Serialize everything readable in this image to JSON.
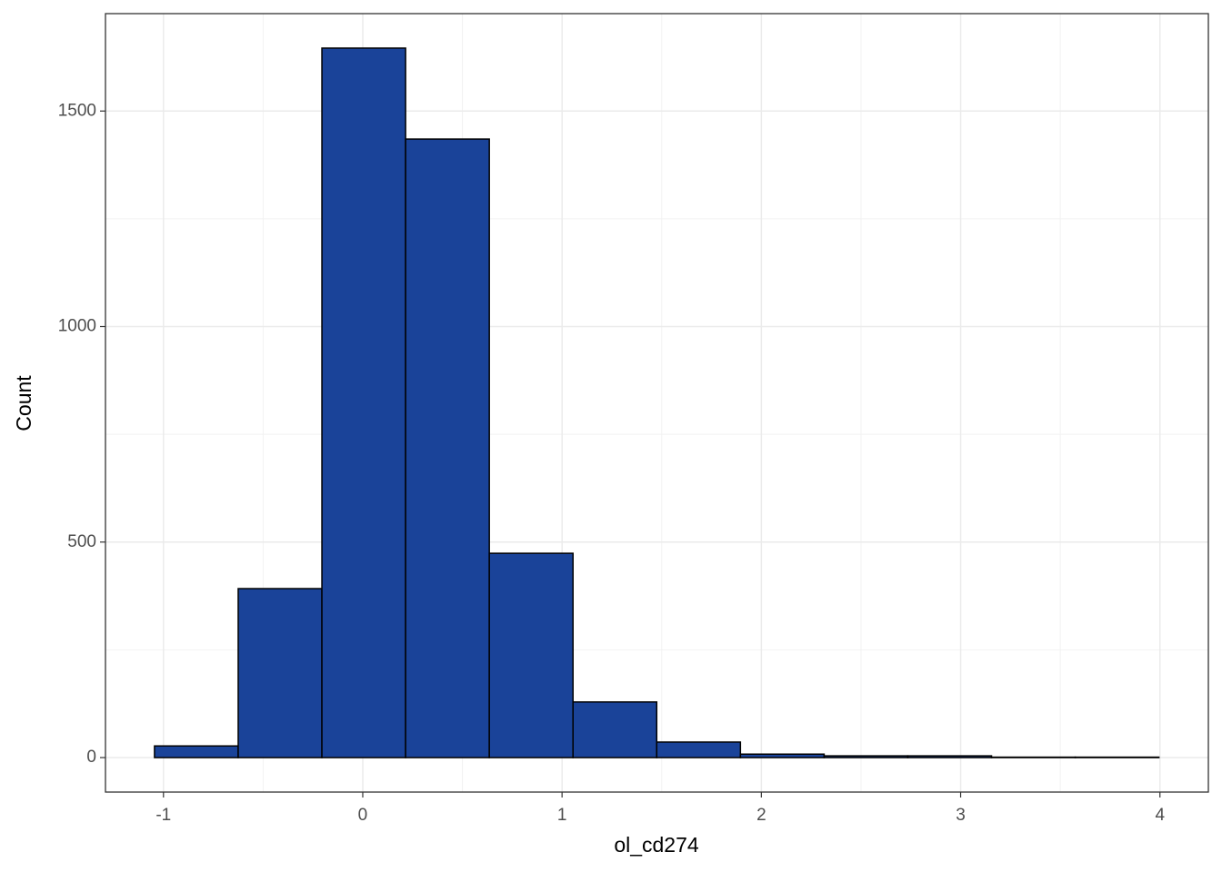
{
  "chart_data": {
    "type": "histogram",
    "x_label": "ol_cd274",
    "y_label": "Count",
    "bins": [
      -1.045,
      -0.625,
      -0.205,
      0.215,
      0.635,
      1.055,
      1.475,
      1.895,
      2.315,
      2.735,
      3.155,
      3.575,
      3.995
    ],
    "counts": [
      27,
      392,
      1646,
      1435,
      474,
      129,
      36,
      8,
      4,
      4,
      1,
      1
    ],
    "color": "#1a4399",
    "edge_color": "#000000",
    "xlim": [
      -1.291,
      4.243
    ],
    "ylim": [
      -80,
      1726
    ],
    "xticks": [
      -1,
      0,
      1,
      2,
      3,
      4
    ],
    "yticks": [
      0,
      500,
      1000,
      1500
    ],
    "x_minor_ticks": [
      -0.5,
      0.5,
      1.5,
      2.5,
      3.5
    ],
    "y_minor_ticks": [
      250,
      750,
      1250
    ],
    "grid": true
  }
}
